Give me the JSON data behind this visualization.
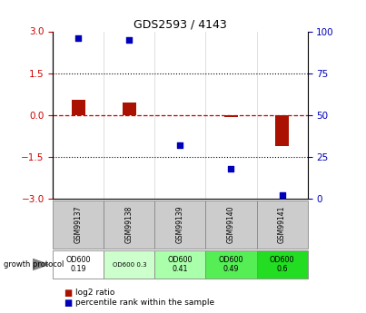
{
  "title": "GDS2593 / 4143",
  "samples": [
    "GSM99137",
    "GSM99138",
    "GSM99139",
    "GSM99140",
    "GSM99141"
  ],
  "log2_ratio": [
    0.55,
    0.45,
    0.0,
    -0.08,
    -1.1
  ],
  "percentile_rank": [
    96,
    95,
    32,
    18,
    2
  ],
  "ylim_left": [
    -3,
    3
  ],
  "ylim_right": [
    0,
    100
  ],
  "yticks_left": [
    -3,
    -1.5,
    0,
    1.5,
    3
  ],
  "yticks_right": [
    0,
    25,
    50,
    75,
    100
  ],
  "hlines": [
    -1.5,
    1.5
  ],
  "bar_color": "#aa1100",
  "scatter_color": "#0000bb",
  "zero_line_color": "#cc0000",
  "protocol_labels": [
    "OD600\n0.19",
    "OD600 0.3",
    "OD600\n0.41",
    "OD600\n0.49",
    "OD600\n0.6"
  ],
  "protocol_bg": [
    "#ffffff",
    "#ccffcc",
    "#aaffaa",
    "#55ee55",
    "#22dd22"
  ],
  "sample_bg": "#cccccc",
  "legend_log2_color": "#aa1100",
  "legend_pct_color": "#0000bb",
  "left_tick_color": "#cc0000",
  "right_tick_color": "#0000bb"
}
